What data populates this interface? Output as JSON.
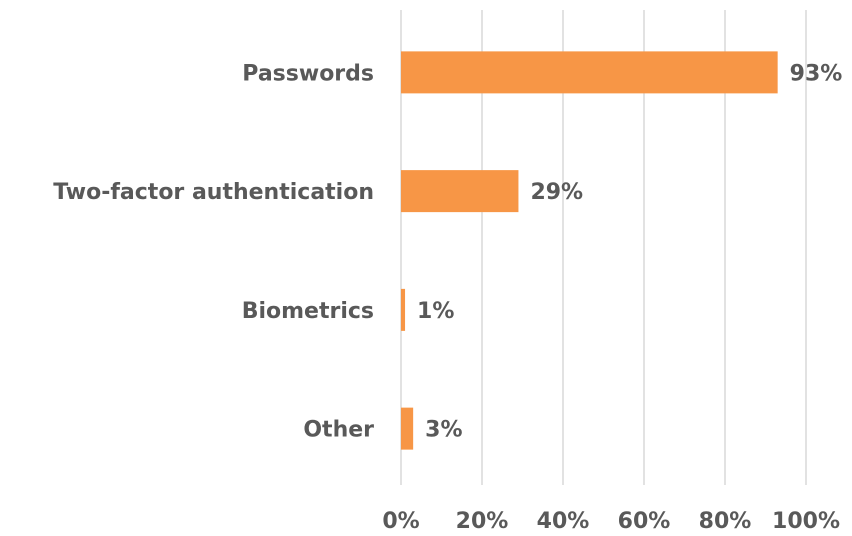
{
  "chart_data": {
    "type": "bar",
    "orientation": "horizontal",
    "categories": [
      "Passwords",
      "Two-factor authentication",
      "Biometrics",
      "Other"
    ],
    "values": [
      93,
      29,
      1,
      3
    ],
    "value_labels": [
      "93%",
      "29%",
      "1%",
      "3%"
    ],
    "color": "#f79646",
    "xlim": [
      0,
      100
    ],
    "xticks": [
      {
        "value": 0,
        "label": "0%"
      },
      {
        "value": 20,
        "label": "20%"
      },
      {
        "value": 40,
        "label": "40%"
      },
      {
        "value": 60,
        "label": "60%"
      },
      {
        "value": 80,
        "label": "80%"
      },
      {
        "value": 100,
        "label": "100%"
      }
    ],
    "grid": true
  }
}
